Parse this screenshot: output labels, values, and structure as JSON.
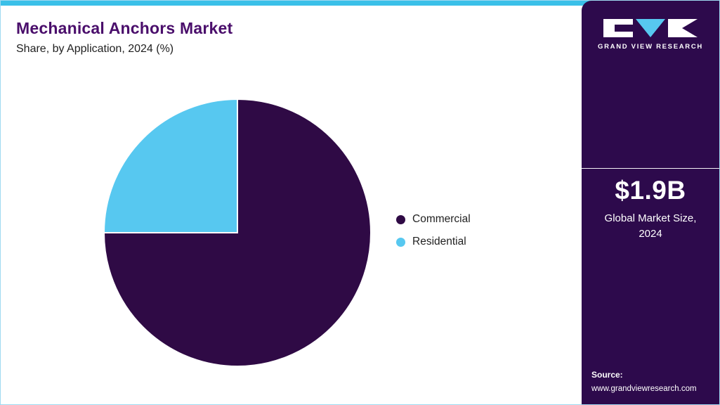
{
  "header": {
    "title": "Mechanical Anchors Market",
    "subtitle": "Share, by Application, 2024 (%)"
  },
  "chart_data": {
    "type": "pie",
    "title": "Mechanical Anchors Market Share, by Application, 2024 (%)",
    "slices": [
      {
        "label": "Commercial",
        "value": 75,
        "color": "#2f0a45"
      },
      {
        "label": "Residential",
        "value": 25,
        "color": "#57c8f0"
      }
    ],
    "start_angle_deg": 0,
    "direction": "clockwise",
    "legend_position": "right",
    "data_labels_shown": false
  },
  "sidebar": {
    "logo_text": "GRAND VIEW RESEARCH",
    "market_size_value": "$1.9B",
    "market_size_label": "Global Market Size, 2024",
    "source_label": "Source:",
    "source_url": "www.grandviewresearch.com"
  },
  "colors": {
    "accent_cyan": "#3ac0e8",
    "sidebar_purple": "#2d0a4c",
    "title_purple": "#4a0e6b",
    "pie_dark": "#2f0a45",
    "pie_light": "#57c8f0"
  }
}
